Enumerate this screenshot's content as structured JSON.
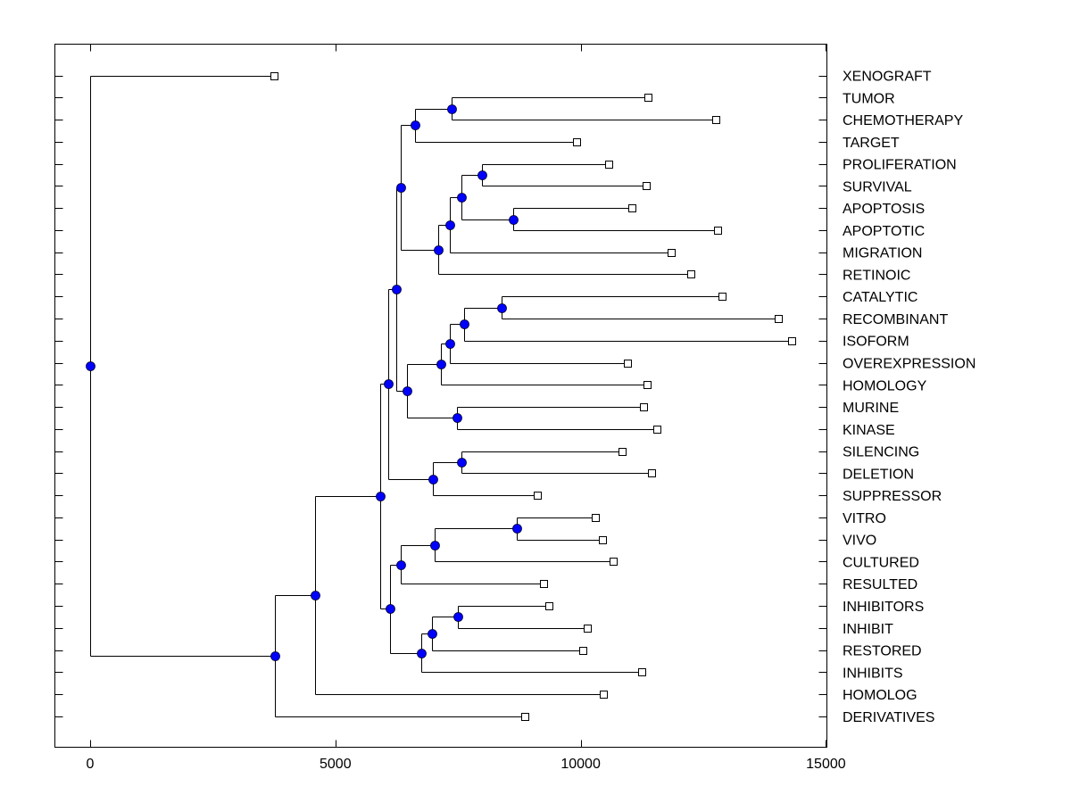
{
  "chart_data": {
    "type": "dendrogram",
    "title": "",
    "xlabel": "",
    "ylabel": "",
    "xlim": [
      -700,
      15000
    ],
    "xticks": [
      0,
      5000,
      10000,
      15000
    ],
    "xtick_labels": [
      "0",
      "5000",
      "10000",
      "15000"
    ],
    "grid": false,
    "legend": "none",
    "colors": {
      "node_fill": "#0000ff",
      "leaf_fill": "#ffffff",
      "line": "#000000"
    },
    "leaves": [
      {
        "label": "XENOGRAFT",
        "x": 3750
      },
      {
        "label": "TUMOR",
        "x": 11380
      },
      {
        "label": "CHEMOTHERAPY",
        "x": 12760
      },
      {
        "label": "TARGET",
        "x": 9910
      },
      {
        "label": "PROLIFERATION",
        "x": 10580
      },
      {
        "label": "SURVIVAL",
        "x": 11330
      },
      {
        "label": "APOPTOSIS",
        "x": 11050
      },
      {
        "label": "APOPTOTIC",
        "x": 12800
      },
      {
        "label": "MIGRATION",
        "x": 11850
      },
      {
        "label": "RETINOIC",
        "x": 12250
      },
      {
        "label": "CATALYTIC",
        "x": 12890
      },
      {
        "label": "RECOMBINANT",
        "x": 14020
      },
      {
        "label": "ISOFORM",
        "x": 14310
      },
      {
        "label": "OVEREXPRESSION",
        "x": 10960
      },
      {
        "label": "HOMOLOGY",
        "x": 11360
      },
      {
        "label": "MURINE",
        "x": 11290
      },
      {
        "label": "KINASE",
        "x": 11560
      },
      {
        "label": "SILENCING",
        "x": 10840
      },
      {
        "label": "DELETION",
        "x": 11450
      },
      {
        "label": "SUPPRESSOR",
        "x": 9110
      },
      {
        "label": "VITRO",
        "x": 10290
      },
      {
        "label": "VIVO",
        "x": 10450
      },
      {
        "label": "CULTURED",
        "x": 10670
      },
      {
        "label": "RESULTED",
        "x": 9250
      },
      {
        "label": "INHIBITORS",
        "x": 9360
      },
      {
        "label": "INHIBIT",
        "x": 10130
      },
      {
        "label": "RESTORED",
        "x": 10040
      },
      {
        "label": "INHIBITS",
        "x": 11250
      },
      {
        "label": "HOMOLOG",
        "x": 10470
      },
      {
        "label": "DERIVATIVES",
        "x": 8870
      }
    ],
    "merges": [
      {
        "id": "n_tum_chemo",
        "x": 7360,
        "children": [
          "L1",
          "L2"
        ]
      },
      {
        "id": "n_tum_target",
        "x": 6620,
        "children": [
          "n_tum_chemo",
          "L3"
        ]
      },
      {
        "id": "n_prol_surv",
        "x": 7980,
        "children": [
          "L4",
          "L5"
        ]
      },
      {
        "id": "n_apop",
        "x": 8620,
        "children": [
          "L6",
          "L7"
        ]
      },
      {
        "id": "n_prol_apop",
        "x": 7570,
        "children": [
          "n_prol_surv",
          "n_apop"
        ]
      },
      {
        "id": "n_migr",
        "x": 7340,
        "children": [
          "n_prol_apop",
          "L8"
        ]
      },
      {
        "id": "n_retin",
        "x": 7100,
        "children": [
          "n_migr",
          "L9"
        ]
      },
      {
        "id": "n_upper",
        "x": 6330,
        "children": [
          "n_tum_target",
          "n_retin"
        ]
      },
      {
        "id": "n_cat_rec",
        "x": 8390,
        "children": [
          "L10",
          "L11"
        ]
      },
      {
        "id": "n_iso",
        "x": 7620,
        "children": [
          "n_cat_rec",
          "L12"
        ]
      },
      {
        "id": "n_overexp",
        "x": 7340,
        "children": [
          "n_iso",
          "L13"
        ]
      },
      {
        "id": "n_homology",
        "x": 7150,
        "children": [
          "n_overexp",
          "L14"
        ]
      },
      {
        "id": "n_mur_kin",
        "x": 7480,
        "children": [
          "L15",
          "L16"
        ]
      },
      {
        "id": "n_mid",
        "x": 6460,
        "children": [
          "n_homology",
          "n_mur_kin"
        ]
      },
      {
        "id": "n_upper_mid",
        "x": 6240,
        "children": [
          "n_upper",
          "n_mid"
        ]
      },
      {
        "id": "n_sil_del",
        "x": 7570,
        "children": [
          "L17",
          "L18"
        ]
      },
      {
        "id": "n_suppr",
        "x": 6990,
        "children": [
          "n_sil_del",
          "L19"
        ]
      },
      {
        "id": "n_upper_all",
        "x": 6080,
        "children": [
          "n_upper_mid",
          "n_suppr"
        ]
      },
      {
        "id": "n_vitro_vivo",
        "x": 8690,
        "children": [
          "L20",
          "L21"
        ]
      },
      {
        "id": "n_cult",
        "x": 7020,
        "children": [
          "n_vitro_vivo",
          "L22"
        ]
      },
      {
        "id": "n_resulted",
        "x": 6330,
        "children": [
          "n_cult",
          "L23"
        ]
      },
      {
        "id": "n_inhib_pair",
        "x": 7500,
        "children": [
          "L24",
          "L25"
        ]
      },
      {
        "id": "n_restored",
        "x": 6960,
        "children": [
          "n_inhib_pair",
          "L26"
        ]
      },
      {
        "id": "n_inhibits",
        "x": 6750,
        "children": [
          "n_restored",
          "L27"
        ]
      },
      {
        "id": "n_lower",
        "x": 6120,
        "children": [
          "n_resulted",
          "n_inhibits"
        ]
      },
      {
        "id": "n_big",
        "x": 5920,
        "children": [
          "n_upper_all",
          "n_lower"
        ]
      },
      {
        "id": "n_homolog",
        "x": 4590,
        "children": [
          "n_big",
          "L28"
        ]
      },
      {
        "id": "n_deriv",
        "x": 3760,
        "children": [
          "n_homolog",
          "L29"
        ]
      },
      {
        "id": "n_root",
        "x": 0,
        "children": [
          "L0",
          "n_deriv"
        ]
      }
    ]
  }
}
